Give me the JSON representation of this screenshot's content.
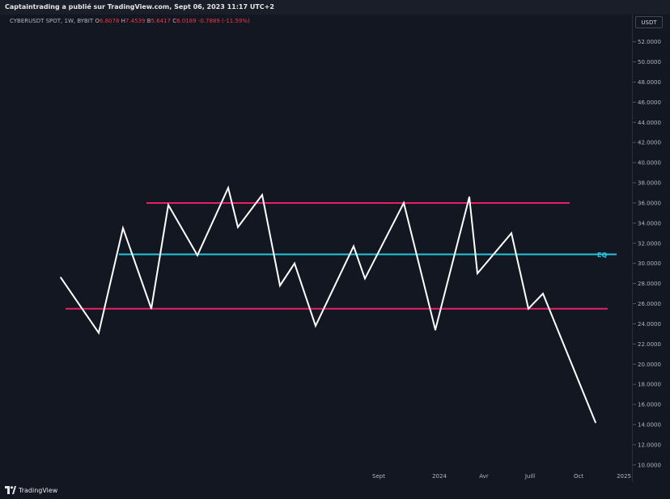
{
  "header": {
    "published": "Captaintrading a publié sur TradingView.com, Sept 06, 2023 11:17 UTC+2"
  },
  "legend": {
    "symbol": "CYBERUSDT SPOT, 1W, BYBIT",
    "open_label": "O",
    "open": "6.8078",
    "high_label": "H",
    "high": "7.4539",
    "low_label": "B",
    "low": "5.6417",
    "close_label": "C",
    "close": "6.0189",
    "change": "-0.7889 (-11.59%)"
  },
  "currency_label": "USDT",
  "brand": {
    "name": "TradingView",
    "icon": "tradingview-logo-icon"
  },
  "colors": {
    "background": "#131722",
    "price_line": "#ffffff",
    "range_lines": "#e91e63",
    "eq_line": "#26c6da",
    "axis_text": "#b2b5be"
  },
  "chart_data": {
    "type": "line",
    "y_tick_labels": [
      "52.0000",
      "50.0000",
      "48.0000",
      "46.0000",
      "44.0000",
      "42.0000",
      "40.0000",
      "38.0000",
      "36.0000",
      "34.0000",
      "32.0000",
      "30.0000",
      "28.0000",
      "26.0000",
      "24.0000",
      "22.0000",
      "20.0000",
      "18.0000",
      "16.0000",
      "14.0000",
      "12.0000",
      "10.0000"
    ],
    "ylim": [
      8.3,
      54.7
    ],
    "x_tick_labels": [
      "Sept",
      "2024",
      "Avr",
      "Juill",
      "Oct",
      "2025"
    ],
    "series": [
      {
        "values": [
          28.6,
          23.1,
          33.5,
          25.5,
          35.8,
          30.8,
          37.5,
          33.6,
          36.8,
          27.8,
          30.0,
          23.8,
          31.7,
          28.5,
          36.0,
          23.4,
          36.6,
          29.0,
          33.0,
          25.5,
          27.0,
          14.2
        ]
      }
    ],
    "horizontal_lines": [
      {
        "label": "",
        "value": 36.0
      },
      {
        "label": "EQ",
        "value": 30.9
      },
      {
        "label": "",
        "value": 25.5
      }
    ]
  }
}
